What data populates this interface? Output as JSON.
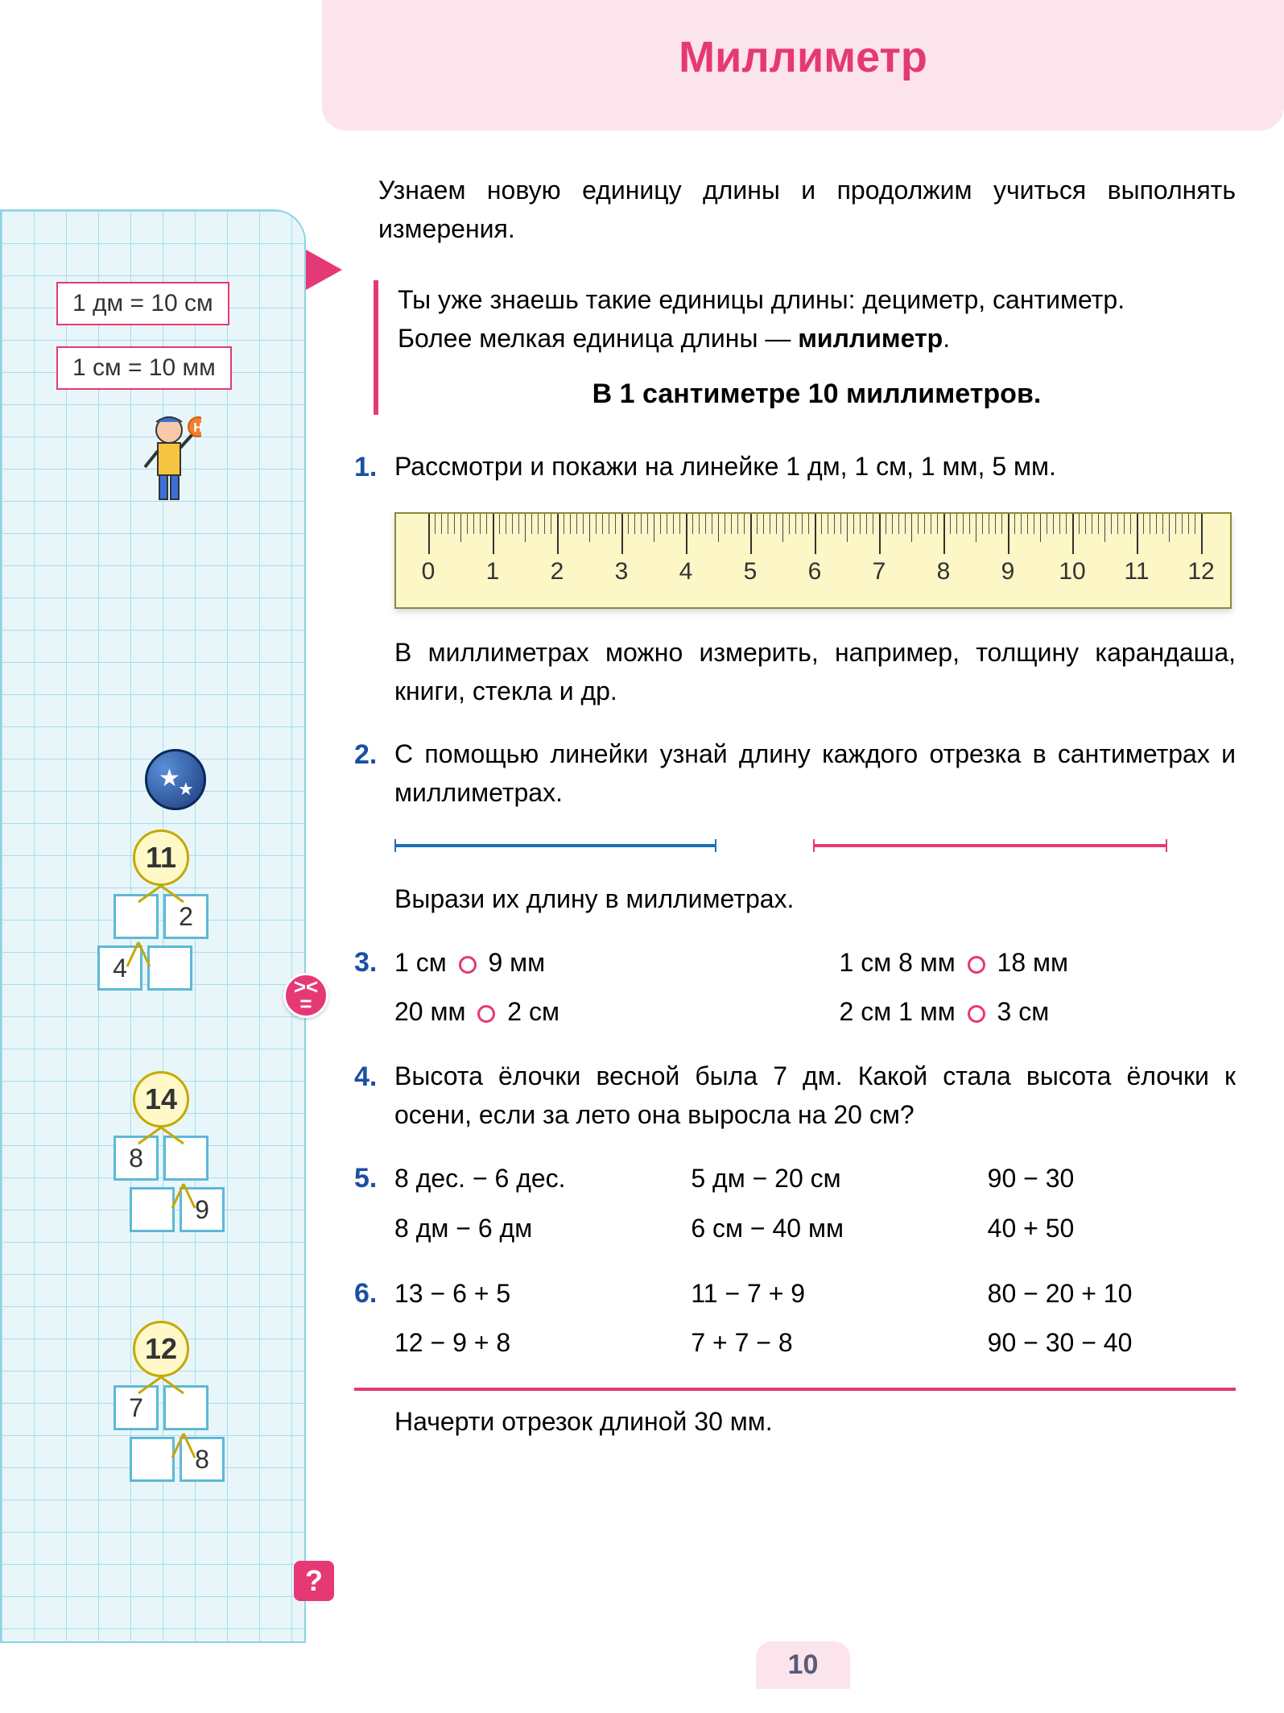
{
  "title": "Миллиметр",
  "intro": "Узнаем новую единицу длины и продолжим учиться выполнять измерения.",
  "info_block": {
    "line1": "Ты уже знаешь такие единицы длины: дециметр, сантиметр.",
    "line2_a": "Более мелкая единица длины — ",
    "line2_b": "миллиметр",
    "rule": "В 1 сантиметре 10 миллиметров."
  },
  "sidebar": {
    "box1": "1 дм = 10 см",
    "box2": "1 см = 10 мм",
    "trees": [
      {
        "root": "11",
        "r1": [
          "",
          "2"
        ],
        "r2": [
          "4",
          ""
        ]
      },
      {
        "root": "14",
        "r1": [
          "8",
          ""
        ],
        "r2": [
          "",
          "9"
        ]
      },
      {
        "root": "12",
        "r1": [
          "7",
          ""
        ],
        "r2": [
          "",
          "8"
        ]
      }
    ]
  },
  "tasks": {
    "t1": "Рассмотри и покажи на линейке 1 дм, 1 см, 1 мм, 5 мм.",
    "p1": "В миллиметрах можно измерить, например, толщину карандаша, книги, стекла и др.",
    "t2": "С помощью линейки узнай длину каждого отрезка в сантиметрах и миллиметрах.",
    "p2": "Вырази их длину в миллиметрах.",
    "t3": {
      "c": [
        [
          "1 см",
          "9 мм"
        ],
        [
          "20 мм",
          "2 см"
        ],
        [
          "1 см 8 мм",
          "18 мм"
        ],
        [
          "2 см 1 мм",
          "3 см"
        ]
      ]
    },
    "t4": "Высота ёлочки весной была 7 дм. Какой стала высота ёлочки к осени, если за лето она выросла на 20 см?",
    "t5": [
      [
        "8 дес. − 6 дес.",
        "5 дм − 20 см",
        "90 − 30"
      ],
      [
        "8 дм − 6 дм",
        "6 см − 40 мм",
        "40 + 50"
      ]
    ],
    "t6": [
      [
        "13 − 6 + 5",
        "11 − 7 + 9",
        "80 − 20 + 10"
      ],
      [
        "12 − 9 + 8",
        "7 + 7 − 8",
        "90 − 30 − 40"
      ]
    ],
    "bottom": "Начерти отрезок длиной 30 мм."
  },
  "ruler": {
    "labels": [
      "0",
      "1",
      "2",
      "3",
      "4",
      "5",
      "6",
      "7",
      "8",
      "9",
      "10",
      "11",
      "12"
    ],
    "major_spacing": 80
  },
  "page_number": "10",
  "colors": {
    "pink": "#e53975",
    "blue_num": "#1a4fa3",
    "seg_blue": "#1e6fb8"
  }
}
